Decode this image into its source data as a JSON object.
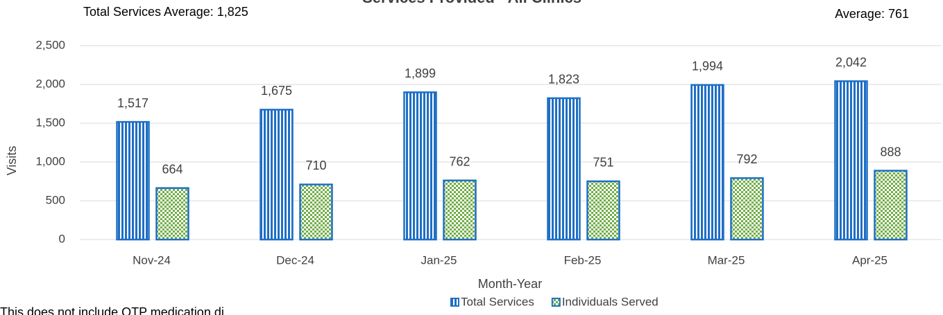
{
  "chart_data": {
    "type": "bar",
    "title": "Services Provided - All Clinics",
    "annotations": [
      "Total Services Average: 1,825",
      "Average: 761"
    ],
    "footnote": "This does not include OTP medication di",
    "x_label": "Month-Year",
    "y_label": "Visits",
    "categories": [
      "Nov-24",
      "Dec-24",
      "Jan-25",
      "Feb-25",
      "Mar-25",
      "Apr-25"
    ],
    "series": [
      {
        "name": "Total Services",
        "color": "#1f6fc5",
        "pattern": "vertical-stripes",
        "values": [
          1517,
          1675,
          1899,
          1823,
          1994,
          2042
        ],
        "value_labels": [
          "1,517",
          "1,675",
          "1,899",
          "1,823",
          "1,994",
          "2,042"
        ]
      },
      {
        "name": "Individuals Served",
        "color": "#70ad47",
        "pattern": "checker",
        "values": [
          664,
          710,
          762,
          751,
          792,
          888
        ],
        "value_labels": [
          "664",
          "710",
          "762",
          "751",
          "792",
          "888"
        ]
      }
    ],
    "ylim": [
      0,
      2500
    ],
    "yticks": [
      0,
      500,
      {
        "value": 1000,
        "label": "1,000"
      },
      {
        "value": 1500,
        "label": "1,500"
      },
      {
        "value": 2000,
        "label": "2,000"
      },
      {
        "value": 2500,
        "label": "2,500"
      }
    ],
    "grid": true,
    "legend": "bottom"
  }
}
